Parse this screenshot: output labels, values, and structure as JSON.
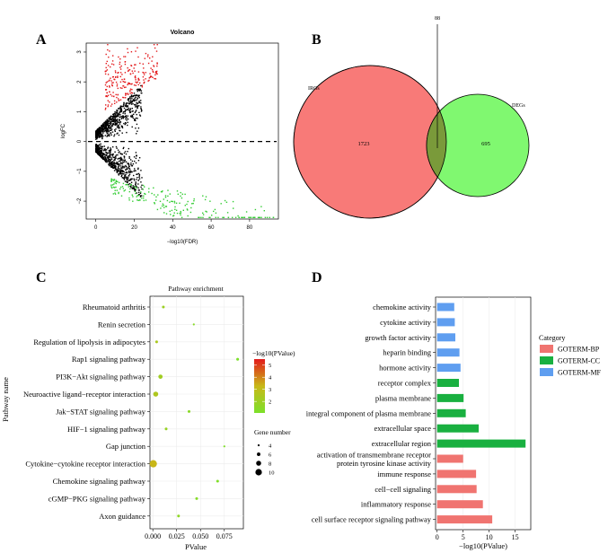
{
  "chart_data": [
    {
      "panel": "A",
      "type": "scatter",
      "title": "Volcano",
      "xlabel": "−log10(FDR)",
      "ylabel": "logFC",
      "xlim": [
        -5,
        95
      ],
      "ylim": [
        -2.6,
        3.3
      ],
      "x_ticks": [
        "0",
        "20",
        "40",
        "60",
        "80"
      ],
      "y_ticks": [
        "−2",
        "−1",
        "0",
        "1",
        "2",
        "3"
      ],
      "threshold_line_y": 0,
      "colors": {
        "up": "#e31a1c",
        "down": "#33cc33",
        "ns": "#000000"
      }
    },
    {
      "panel": "B",
      "type": "venn",
      "sets": [
        {
          "name": "IRGs",
          "value": "1723",
          "color": "#f87a78"
        },
        {
          "name": "DEGs",
          "value": "695",
          "color": "#80f870"
        }
      ],
      "intersection": "88",
      "overlap_color": "#7a9a3a"
    },
    {
      "panel": "C",
      "type": "scatter",
      "title": "Pathway enrichment",
      "xlabel": "PValue",
      "ylabel": "Pathway name",
      "xlim": [
        -0.003,
        0.095
      ],
      "x_ticks": [
        {
          "v": 0.0,
          "label": "0.000"
        },
        {
          "v": 0.025,
          "label": "0.025"
        },
        {
          "v": 0.05,
          "label": "0.050"
        },
        {
          "v": 0.075,
          "label": "0.075"
        }
      ],
      "categories": [
        "Rheumatoid arthritis",
        "Renin secretion",
        "Regulation of lipolysis in adipocytes",
        "Rap1 signaling pathway",
        "PI3K−Akt signaling pathway",
        "Neuroactive ligand−receptor interaction",
        "Jak−STAT signaling pathway",
        "HIF−1 signaling pathway",
        "Gap junction",
        "Cytokine−cytokine receptor interaction",
        "Chemokine signaling pathway",
        "cGMP−PKG signaling pathway",
        "Axon guidance"
      ],
      "pvalue": [
        0.011,
        0.043,
        0.004,
        0.089,
        0.008,
        0.003,
        0.038,
        0.014,
        0.075,
        0.0005,
        0.068,
        0.046,
        0.027
      ],
      "gene_number": [
        5,
        4,
        5,
        5,
        7,
        8,
        5,
        5,
        4,
        11,
        5,
        5,
        5
      ],
      "color_legend": {
        "title": "−log10(PValue)",
        "ticks": [
          "5",
          "4",
          "3",
          "2"
        ],
        "range": [
          1.05,
          5.5
        ]
      },
      "size_legend": {
        "title": "Gene number",
        "ticks": [
          "4",
          "6",
          "8",
          "10"
        ]
      }
    },
    {
      "panel": "D",
      "type": "bar",
      "orientation": "horizontal",
      "xlabel": "−log10(PValue)",
      "xlim": [
        -0.3,
        18
      ],
      "x_ticks": [
        "0",
        "5",
        "10",
        "15"
      ],
      "categories": [
        "chemokine activity",
        "cytokine activity",
        "growth factor activity",
        "heparin binding",
        "hormone activity",
        "receptor complex",
        "plasma membrane",
        "integral component of plasma membrane",
        "extracellular space",
        "extracellular region",
        "activation of transmembrane receptor protein tyrosine kinase activity",
        "immune response",
        "cell−cell signaling",
        "inflammatory response",
        "cell surface receptor signaling pathway"
      ],
      "label_lines": [
        [
          "chemokine activity"
        ],
        [
          "cytokine activity"
        ],
        [
          "growth factor activity"
        ],
        [
          "heparin binding"
        ],
        [
          "hormone activity"
        ],
        [
          "receptor complex"
        ],
        [
          "plasma membrane"
        ],
        [
          "integral component of plasma membrane"
        ],
        [
          "extracellular space"
        ],
        [
          "extracellular region"
        ],
        [
          "activation of transmembrane receptor",
          "protein tyrosine kinase activity"
        ],
        [
          "immune response"
        ],
        [
          "cell−cell signaling"
        ],
        [
          "inflammatory response"
        ],
        [
          "cell surface receptor signaling pathway"
        ]
      ],
      "values": [
        3.3,
        3.4,
        3.5,
        4.3,
        4.5,
        4.2,
        5.1,
        5.5,
        8.0,
        17.0,
        5.0,
        7.5,
        7.6,
        8.8,
        10.6
      ],
      "category_of": [
        "MF",
        "MF",
        "MF",
        "MF",
        "MF",
        "CC",
        "CC",
        "CC",
        "CC",
        "CC",
        "BP",
        "BP",
        "BP",
        "BP",
        "BP"
      ],
      "legend": {
        "title": "Category",
        "items": [
          {
            "key": "BP",
            "label": "GOTERM-BP",
            "color": "#f07470"
          },
          {
            "key": "CC",
            "label": "GOTERM-CC",
            "color": "#19b040"
          },
          {
            "key": "MF",
            "label": "GOTERM-MF",
            "color": "#5f9ef0"
          }
        ]
      }
    }
  ],
  "panel_labels": [
    "A",
    "B",
    "C",
    "D"
  ]
}
